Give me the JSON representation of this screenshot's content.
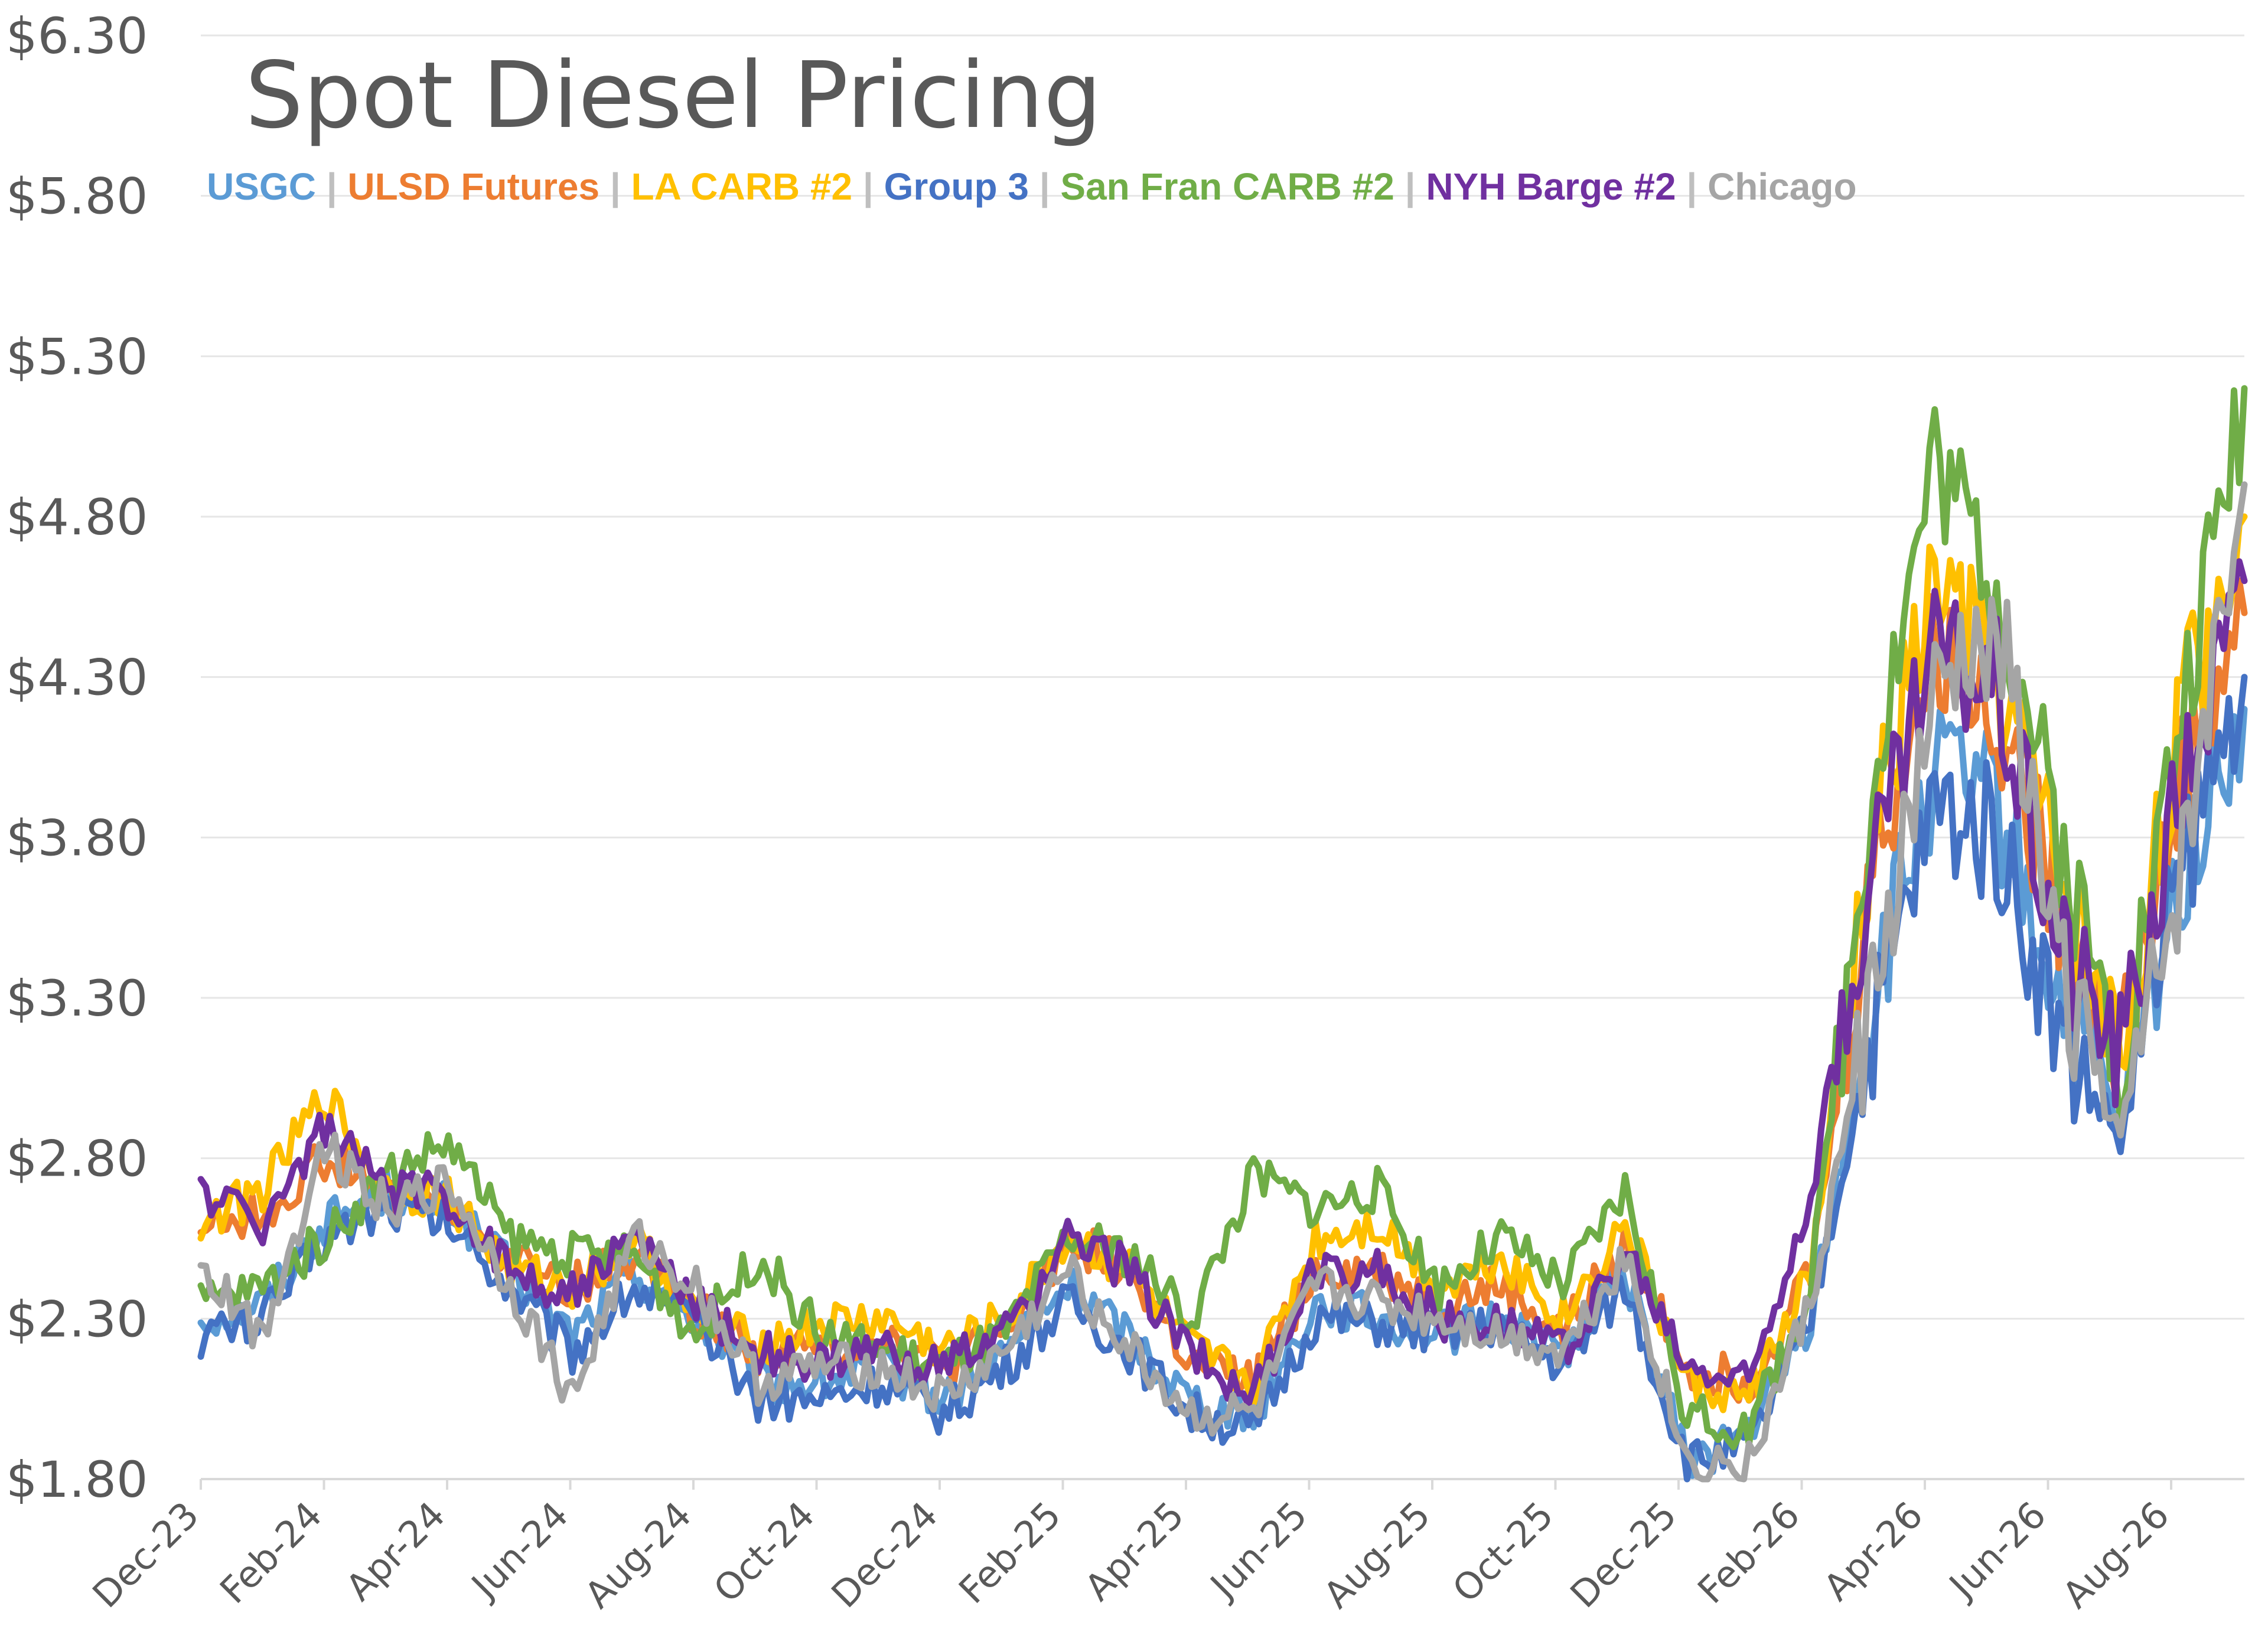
{
  "chart_data": {
    "type": "line",
    "title": "Spot Diesel Pricing",
    "xlabel": "",
    "ylabel": "",
    "ylim": [
      1.8,
      6.3
    ],
    "y_ticks": [
      "$1.80",
      "$2.30",
      "$2.80",
      "$3.30",
      "$3.80",
      "$4.30",
      "$4.80",
      "$5.30",
      "$5.80",
      "$6.30"
    ],
    "x_ticks": [
      "Dec-23",
      "Feb-24",
      "Apr-24",
      "Jun-24",
      "Aug-24",
      "Oct-24",
      "Dec-24",
      "Feb-25",
      "Apr-25",
      "Jun-25",
      "Aug-25",
      "Oct-25",
      "Dec-25",
      "Feb-26",
      "Apr-26",
      "Jun-26",
      "Aug-26"
    ],
    "grid": true,
    "legend_position": "top-left",
    "x": [
      "Dec-23",
      "Jan-24",
      "Feb-24",
      "Mar-24",
      "Apr-24",
      "May-24",
      "Jun-24",
      "Jul-24",
      "Aug-24",
      "Sep-24",
      "Oct-24",
      "Nov-24",
      "Dec-24",
      "Jan-25",
      "Feb-25",
      "Mar-25",
      "Apr-25",
      "May-25",
      "Jun-25",
      "Jul-25",
      "Aug-25",
      "Sep-25",
      "Oct-25",
      "Nov-25",
      "Dec-25",
      "Jan-26",
      "Feb-26",
      "Mar-26",
      "Apr-26",
      "May-26",
      "Jun-26",
      "Jul-26",
      "Aug-26",
      "Sep-26"
    ],
    "series": [
      {
        "name": "USGC",
        "color": "#5B9BD5",
        "values": [
          2.3,
          2.35,
          2.6,
          2.7,
          2.65,
          2.45,
          2.25,
          2.45,
          2.3,
          2.1,
          2.1,
          2.15,
          2.05,
          2.2,
          2.4,
          2.25,
          2.05,
          2.0,
          2.35,
          2.3,
          2.25,
          2.3,
          2.2,
          2.45,
          1.85,
          1.95,
          2.3,
          3.3,
          4.0,
          3.9,
          3.3,
          2.9,
          3.7,
          4.2
        ]
      },
      {
        "name": "ULSD Futures",
        "color": "#ED7D31",
        "values": [
          2.6,
          2.62,
          2.8,
          2.68,
          2.65,
          2.48,
          2.4,
          2.5,
          2.32,
          2.2,
          2.2,
          2.25,
          2.15,
          2.25,
          2.55,
          2.45,
          2.15,
          2.1,
          2.45,
          2.45,
          2.35,
          2.4,
          2.25,
          2.55,
          2.15,
          2.1,
          2.45,
          3.7,
          4.4,
          4.2,
          3.6,
          3.15,
          4.0,
          4.5
        ]
      },
      {
        "name": "LA CARB #2",
        "color": "#FFC000",
        "values": [
          2.6,
          2.7,
          3.0,
          2.7,
          2.68,
          2.45,
          2.4,
          2.55,
          2.3,
          2.22,
          2.28,
          2.3,
          2.2,
          2.3,
          2.55,
          2.45,
          2.2,
          2.1,
          2.55,
          2.6,
          2.4,
          2.5,
          2.3,
          2.6,
          2.1,
          2.05,
          2.45,
          3.8,
          4.6,
          4.3,
          3.7,
          3.1,
          4.2,
          4.8
        ]
      },
      {
        "name": "Group 3",
        "color": "#4472C4",
        "values": [
          2.25,
          2.3,
          2.55,
          2.65,
          2.6,
          2.4,
          2.2,
          2.4,
          2.28,
          2.05,
          2.05,
          2.1,
          2.0,
          2.15,
          2.35,
          2.2,
          2.0,
          1.95,
          2.3,
          2.28,
          2.25,
          2.28,
          2.15,
          2.4,
          1.85,
          1.9,
          2.3,
          3.2,
          3.9,
          3.8,
          3.2,
          2.85,
          3.7,
          4.3
        ]
      },
      {
        "name": "San Fran CARB #2",
        "color": "#70AD47",
        "values": [
          2.35,
          2.4,
          2.55,
          2.75,
          2.85,
          2.55,
          2.5,
          2.5,
          2.25,
          2.5,
          2.25,
          2.2,
          2.15,
          2.25,
          2.55,
          2.5,
          2.3,
          2.75,
          2.65,
          2.7,
          2.4,
          2.55,
          2.4,
          2.7,
          2.0,
          1.95,
          2.4,
          4.0,
          5.0,
          4.6,
          3.8,
          3.1,
          4.2,
          5.2
        ]
      },
      {
        "name": "NYH Barge #2",
        "color": "#7030A0",
        "values": [
          2.7,
          2.6,
          2.9,
          2.7,
          2.68,
          2.45,
          2.38,
          2.55,
          2.35,
          2.2,
          2.15,
          2.2,
          2.15,
          2.25,
          2.55,
          2.45,
          2.2,
          2.05,
          2.45,
          2.45,
          2.3,
          2.3,
          2.2,
          2.5,
          2.15,
          2.1,
          2.7,
          3.7,
          4.4,
          4.3,
          3.5,
          3.15,
          4.0,
          4.6
        ]
      },
      {
        "name": "Chicago",
        "color": "#A5A5A5",
        "values": [
          2.45,
          2.25,
          2.85,
          2.65,
          2.72,
          2.4,
          2.05,
          2.55,
          2.4,
          2.1,
          2.15,
          2.15,
          2.05,
          2.2,
          2.45,
          2.2,
          2.0,
          2.0,
          2.4,
          2.35,
          2.3,
          2.25,
          2.2,
          2.5,
          1.85,
          1.85,
          2.35,
          3.3,
          4.2,
          4.5,
          3.4,
          2.85,
          3.7,
          4.9
        ]
      }
    ]
  }
}
